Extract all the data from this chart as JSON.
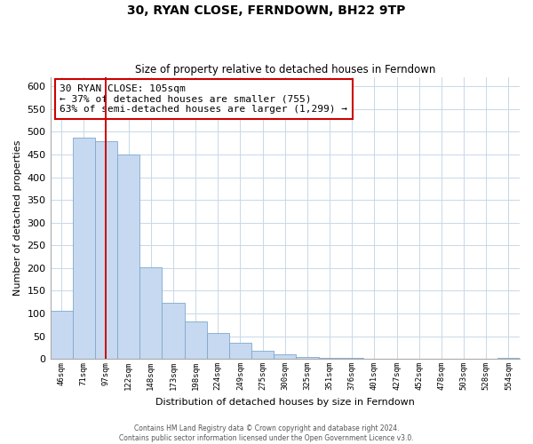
{
  "title": "30, RYAN CLOSE, FERNDOWN, BH22 9TP",
  "subtitle": "Size of property relative to detached houses in Ferndown",
  "xlabel": "Distribution of detached houses by size in Ferndown",
  "ylabel": "Number of detached properties",
  "bar_labels": [
    "46sqm",
    "71sqm",
    "97sqm",
    "122sqm",
    "148sqm",
    "173sqm",
    "198sqm",
    "224sqm",
    "249sqm",
    "275sqm",
    "300sqm",
    "325sqm",
    "351sqm",
    "376sqm",
    "401sqm",
    "427sqm",
    "452sqm",
    "478sqm",
    "503sqm",
    "528sqm",
    "554sqm"
  ],
  "bar_values": [
    105,
    487,
    480,
    450,
    202,
    123,
    82,
    57,
    35,
    17,
    10,
    5,
    2,
    2,
    1,
    0,
    0,
    0,
    0,
    0,
    2
  ],
  "bar_color": "#c6d9f0",
  "bar_edge_color": "#7fa8cc",
  "marker_index": 2,
  "marker_color": "#cc0000",
  "ylim": [
    0,
    620
  ],
  "yticks": [
    0,
    50,
    100,
    150,
    200,
    250,
    300,
    350,
    400,
    450,
    500,
    550,
    600
  ],
  "annotation_line1": "30 RYAN CLOSE: 105sqm",
  "annotation_line2": "← 37% of detached houses are smaller (755)",
  "annotation_line3": "63% of semi-detached houses are larger (1,299) →",
  "annotation_box_edge": "#cc0000",
  "footnote_line1": "Contains HM Land Registry data © Crown copyright and database right 2024.",
  "footnote_line2": "Contains public sector information licensed under the Open Government Licence v3.0.",
  "background_color": "#ffffff",
  "grid_color": "#c8d8e8"
}
